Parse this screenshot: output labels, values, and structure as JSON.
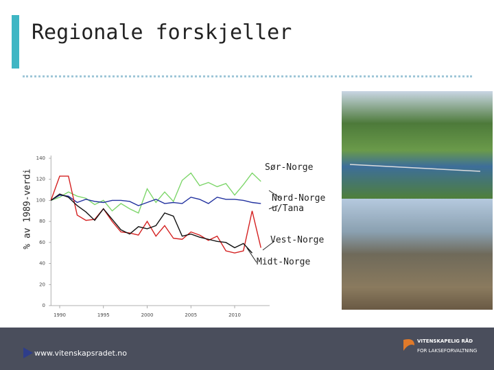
{
  "header": {
    "title": "Regionale forskjeller"
  },
  "footer": {
    "url": "www.vitenskapsradet.no",
    "logo_line1": "VITENSKAPELIG RÅD",
    "logo_line2": "FOR LAKSEFORVALTNING"
  },
  "chart_data": {
    "type": "line",
    "y_label": "% av 1989-verdi",
    "x": [
      1989,
      1990,
      1991,
      1992,
      1993,
      1994,
      1995,
      1996,
      1997,
      1998,
      1999,
      2000,
      2001,
      2002,
      2003,
      2004,
      2005,
      2006,
      2007,
      2008,
      2009,
      2010,
      2011,
      2012,
      2013
    ],
    "xlim": [
      1989,
      2014
    ],
    "xticks": [
      1990,
      1995,
      2000,
      2005,
      2010
    ],
    "ylim": [
      0,
      140
    ],
    "yticks": [
      0,
      20,
      40,
      60,
      80,
      100,
      120,
      140
    ],
    "series": [
      {
        "name": "Sør-Norge",
        "color": "#7dd66a",
        "values": [
          100,
          103,
          108,
          104,
          102,
          96,
          100,
          90,
          97,
          92,
          88,
          111,
          98,
          108,
          99,
          119,
          126,
          114,
          117,
          113,
          116,
          105,
          115,
          126,
          118
        ]
      },
      {
        "name": "Nord-Norge u/Tana",
        "color": "#1f2f9e",
        "values": [
          100,
          105,
          104,
          98,
          101,
          99,
          98,
          100,
          100,
          99,
          95,
          98,
          101,
          97,
          98,
          97,
          103,
          101,
          97,
          103,
          101,
          101,
          100,
          98,
          97
        ]
      },
      {
        "name": "Vest-Norge",
        "color": "#d42020",
        "values": [
          100,
          123,
          123,
          86,
          81,
          82,
          92,
          80,
          70,
          69,
          67,
          80,
          66,
          76,
          64,
          63,
          70,
          67,
          62,
          66,
          52,
          50,
          52,
          90,
          55
        ]
      },
      {
        "name": "Midt-Norge",
        "color": "#111111",
        "values": [
          100,
          106,
          103,
          95,
          89,
          81,
          92,
          82,
          72,
          68,
          75,
          73,
          76,
          88,
          85,
          66,
          68,
          65,
          63,
          61,
          60,
          55,
          59,
          50,
          null
        ]
      }
    ]
  }
}
